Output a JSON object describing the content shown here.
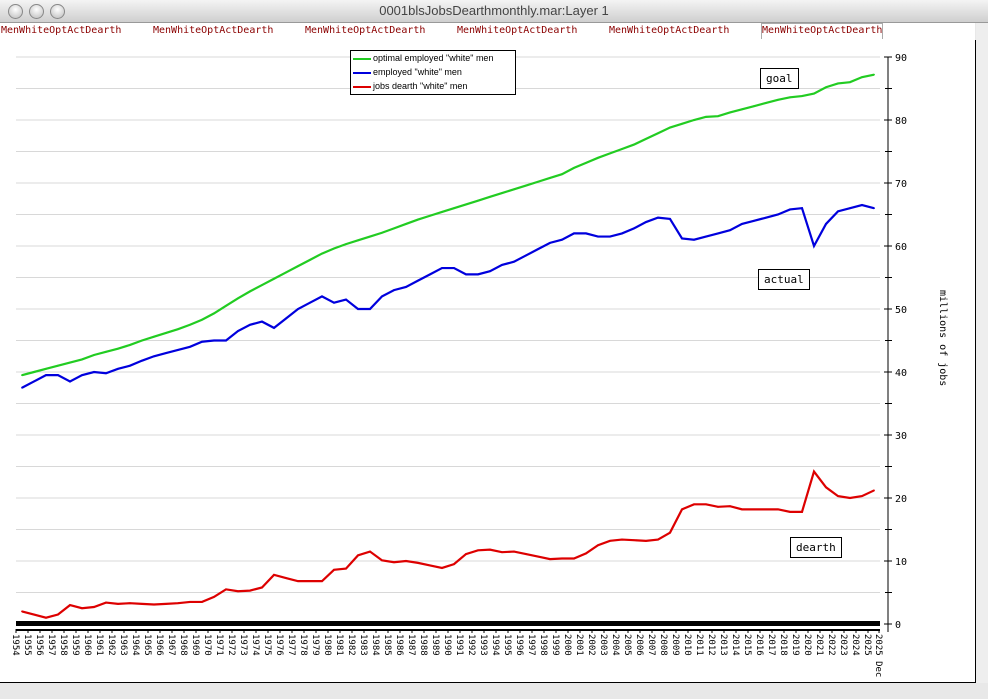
{
  "window": {
    "title": "0001blsJobsDearthmonthly.mar:Layer 1"
  },
  "tabs": [
    "MenWhiteOptActDearth",
    "MenWhiteOptActDearth",
    "MenWhiteOptActDearth",
    "MenWhiteOptActDearth",
    "MenWhiteOptActDearth",
    "MenWhiteOptActDearth"
  ],
  "chart_data": {
    "type": "line",
    "ylabel": "millions of jobs",
    "ylim": [
      0,
      90
    ],
    "yticks": [
      "0",
      "10",
      "20",
      "30",
      "40",
      "50",
      "60",
      "70",
      "80",
      "90"
    ],
    "grid": true,
    "legend_position": "top-center",
    "xticks": [
      "1954",
      "1955",
      "1956",
      "1957",
      "1958",
      "1959",
      "1960",
      "1961",
      "1962",
      "1963",
      "1964",
      "1965",
      "1966",
      "1967",
      "1968",
      "1969",
      "1970",
      "1971",
      "1972",
      "1973",
      "1974",
      "1975",
      "1976",
      "1977",
      "1978",
      "1979",
      "1980",
      "1981",
      "1982",
      "1983",
      "1984",
      "1985",
      "1986",
      "1987",
      "1988",
      "1989",
      "1990",
      "1991",
      "1992",
      "1993",
      "1994",
      "1995",
      "1996",
      "1997",
      "1998",
      "1999",
      "2000",
      "2001",
      "2002",
      "2003",
      "2004",
      "2005",
      "2006",
      "2007",
      "2008",
      "2009",
      "2010",
      "2011",
      "2012",
      "2013",
      "2014",
      "2015",
      "2016",
      "2017",
      "2018",
      "2019",
      "2020",
      "2021",
      "2022",
      "2023",
      "2024",
      "2025",
      "2025 Dec"
    ],
    "x": [
      1954,
      1955,
      1956,
      1957,
      1958,
      1959,
      1960,
      1961,
      1962,
      1963,
      1964,
      1965,
      1966,
      1967,
      1968,
      1969,
      1970,
      1971,
      1972,
      1973,
      1974,
      1975,
      1976,
      1977,
      1978,
      1979,
      1980,
      1981,
      1982,
      1983,
      1984,
      1985,
      1986,
      1987,
      1988,
      1989,
      1990,
      1991,
      1992,
      1993,
      1994,
      1995,
      1996,
      1997,
      1998,
      1999,
      2000,
      2001,
      2002,
      2003,
      2004,
      2005,
      2006,
      2007,
      2008,
      2009,
      2010,
      2011,
      2012,
      2013,
      2014,
      2015,
      2016,
      2017,
      2018,
      2019,
      2020,
      2021,
      2022,
      2023,
      2024,
      2025
    ],
    "series": [
      {
        "name": "optimal employed \"white\" men",
        "color": "#22cc22",
        "values": [
          39.5,
          40,
          40.5,
          41,
          41.5,
          42,
          42.7,
          43.2,
          43.7,
          44.3,
          45,
          45.6,
          46.2,
          46.8,
          47.5,
          48.3,
          49.3,
          50.5,
          51.7,
          52.8,
          53.8,
          54.8,
          55.8,
          56.8,
          57.8,
          58.8,
          59.6,
          60.3,
          60.9,
          61.5,
          62.1,
          62.8,
          63.5,
          64.2,
          64.8,
          65.4,
          66,
          66.6,
          67.2,
          67.8,
          68.4,
          69,
          69.6,
          70.2,
          70.8,
          71.4,
          72.4,
          73.2,
          74,
          74.7,
          75.4,
          76.1,
          77,
          77.9,
          78.8,
          79.4,
          80,
          80.5,
          80.6,
          81.2,
          81.7,
          82.2,
          82.7,
          83.2,
          83.6,
          83.8,
          84.2,
          85.2,
          85.8,
          86,
          86.8,
          87.2
        ]
      },
      {
        "name": "employed \"white\" men",
        "color": "#0000dd",
        "values": [
          37.5,
          38.5,
          39.5,
          39.5,
          38.5,
          39.5,
          40,
          39.8,
          40.5,
          41,
          41.8,
          42.5,
          43,
          43.5,
          44,
          44.8,
          45,
          45,
          46.5,
          47.5,
          48,
          47,
          48.5,
          50,
          51,
          52,
          51,
          51.5,
          50,
          50,
          52,
          53,
          53.5,
          54.5,
          55.5,
          56.5,
          56.5,
          55.5,
          55.5,
          56,
          57,
          57.5,
          58.5,
          59.5,
          60.5,
          61,
          62,
          62,
          61.5,
          61.5,
          62,
          62.8,
          63.8,
          64.5,
          64.3,
          61.2,
          61,
          61.5,
          62,
          62.5,
          63.5,
          64,
          64.5,
          65,
          65.8,
          66,
          60,
          63.5,
          65.5,
          66,
          66.5,
          66
        ]
      },
      {
        "name": "jobs dearth \"white\" men",
        "color": "#dd0000",
        "values": [
          2,
          1.5,
          1,
          1.5,
          3,
          2.5,
          2.7,
          3.4,
          3.2,
          3.3,
          3.2,
          3.1,
          3.2,
          3.3,
          3.5,
          3.5,
          4.3,
          5.5,
          5.2,
          5.3,
          5.8,
          7.8,
          7.3,
          6.8,
          6.8,
          6.8,
          8.6,
          8.8,
          10.9,
          11.5,
          10.1,
          9.8,
          10,
          9.7,
          9.3,
          8.9,
          9.5,
          11.1,
          11.7,
          11.8,
          11.4,
          11.5,
          11.1,
          10.7,
          10.3,
          10.4,
          10.4,
          11.2,
          12.5,
          13.2,
          13.4,
          13.3,
          13.2,
          13.4,
          14.5,
          18.2,
          19,
          19,
          18.6,
          18.7,
          18.2,
          18.2,
          18.2,
          18.2,
          17.8,
          17.8,
          24.2,
          21.7,
          20.3,
          20,
          20.3,
          21.2
        ]
      }
    ],
    "annotations": [
      "goal",
      "actual",
      "dearth"
    ]
  }
}
